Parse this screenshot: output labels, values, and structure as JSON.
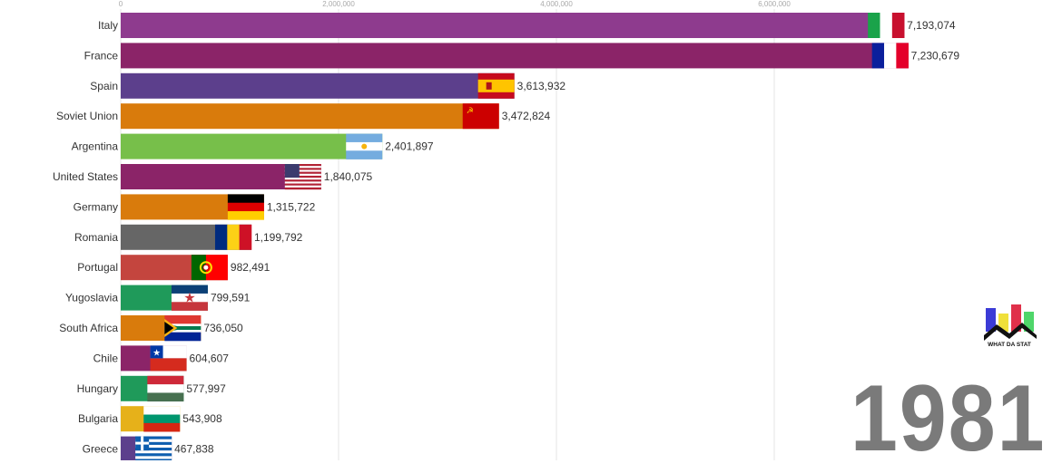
{
  "chart_data": {
    "type": "bar",
    "orientation": "horizontal",
    "year": "1981",
    "xlim": [
      0,
      7500000
    ],
    "xticks": [
      0,
      2000000,
      4000000,
      6000000
    ],
    "xtick_labels": [
      "0",
      "2,000,000",
      "4,000,000",
      "6,000,000"
    ],
    "grid": true,
    "categories": [
      "Italy",
      "France",
      "Spain",
      "Soviet Union",
      "Argentina",
      "United States",
      "Germany",
      "Romania",
      "Portugal",
      "Yugoslavia",
      "South Africa",
      "Chile",
      "Hungary",
      "Bulgaria",
      "Greece"
    ],
    "values": [
      7193074,
      7230679,
      3613932,
      3472824,
      2401897,
      1840075,
      1315722,
      1199792,
      982491,
      799591,
      736050,
      604607,
      577997,
      543908,
      467838
    ],
    "value_labels": [
      "7,193,074",
      "7,230,679",
      "3,613,932",
      "3,472,824",
      "2,401,897",
      "1,840,075",
      "1,315,722",
      "1,199,792",
      "982,491",
      "799,591",
      "736,050",
      "604,607",
      "577,997",
      "543,908",
      "467,838"
    ],
    "colors": [
      "#8e3b8e",
      "#8b2468",
      "#5c3f8c",
      "#d97b0c",
      "#77bf4a",
      "#8b2468",
      "#d97b0c",
      "#666666",
      "#c4453e",
      "#1f9a5a",
      "#d97b0c",
      "#8b2468",
      "#1f9a5a",
      "#e6b11a",
      "#5c3f8c"
    ],
    "flags": [
      "italy-flag-icon",
      "france-flag-icon",
      "spain-flag-icon",
      "soviet-union-flag-icon",
      "argentina-flag-icon",
      "united-states-flag-icon",
      "germany-flag-icon",
      "romania-flag-icon",
      "portugal-flag-icon",
      "yugoslavia-flag-icon",
      "south-africa-flag-icon",
      "chile-flag-icon",
      "hungary-flag-icon",
      "bulgaria-flag-icon",
      "greece-flag-icon"
    ]
  },
  "logo": {
    "text": "WHAT DA STAT",
    "colors": [
      "#3b3bd6",
      "#f0e03a",
      "#e0304a",
      "#4fd66a"
    ]
  }
}
